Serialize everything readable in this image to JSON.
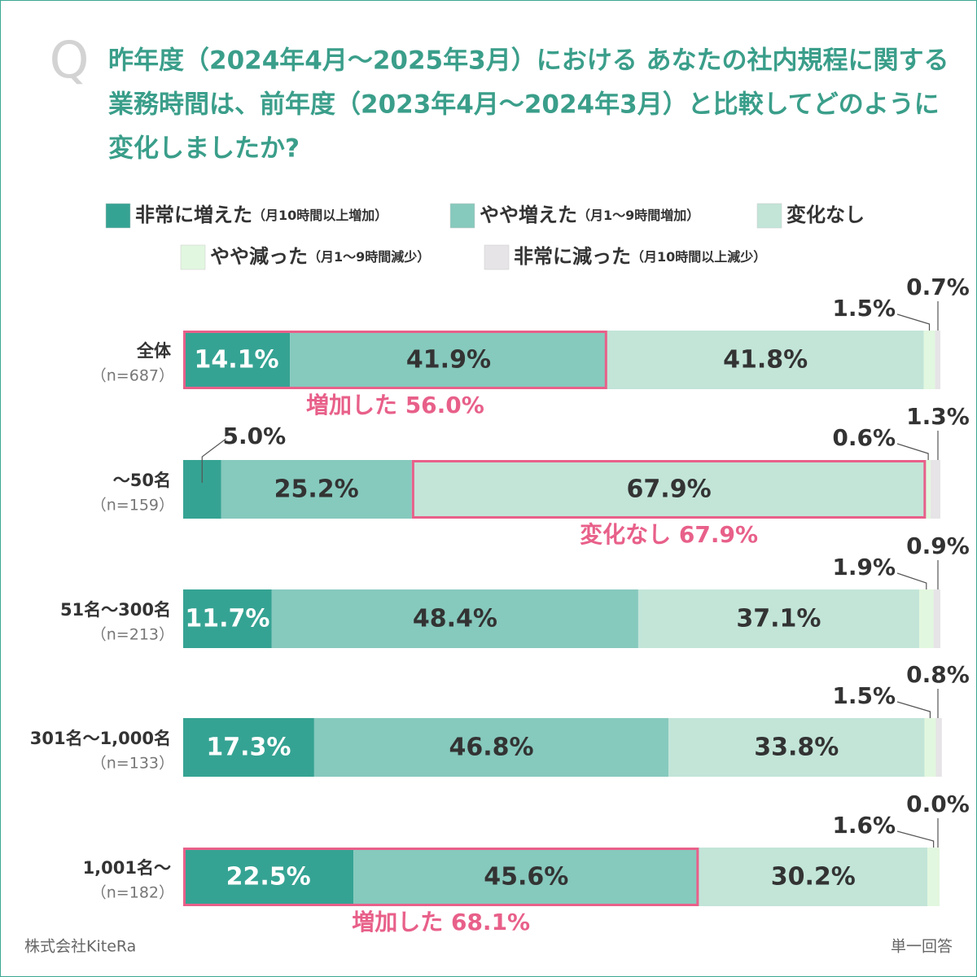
{
  "chart_data": {
    "type": "stacked-bar-horizontal",
    "q_mark": "Q",
    "title_lines": [
      "昨年度（2024年4月～2025年3月）における あなたの社内規程に関する",
      "業務時間は、前年度（2023年4月～2024年3月）と比較してどのように",
      "変化しましたか?"
    ],
    "categories": [
      "全体",
      "～50名",
      "51名～300名",
      "301名～1,000名",
      "1,001名～"
    ],
    "category_notes": [
      "（n=687）",
      "（n=159）",
      "（n=213）",
      "（n=133）",
      "（n=182）"
    ],
    "xlim": [
      0,
      100
    ],
    "series": [
      {
        "name": "非常に増えた",
        "detail": "（月10時間以上増加）",
        "color": "#35a393",
        "values": [
          14.1,
          5.0,
          11.7,
          17.3,
          22.5
        ],
        "value_labels": [
          "14.1%",
          "5.0%",
          "11.7%",
          "17.3%",
          "22.5%"
        ]
      },
      {
        "name": "やや増えた",
        "detail": "（月1～9時間増加）",
        "color": "#86c9bd",
        "values": [
          41.9,
          25.2,
          48.4,
          46.8,
          45.6
        ],
        "value_labels": [
          "41.9%",
          "25.2%",
          "48.4%",
          "46.8%",
          "45.6%"
        ]
      },
      {
        "name": "変化なし",
        "color": "#c2e5d8",
        "values": [
          41.8,
          67.9,
          37.1,
          33.8,
          30.2
        ],
        "value_labels": [
          "41.8%",
          "67.9%",
          "37.1%",
          "33.8%",
          "30.2%"
        ]
      },
      {
        "name": "やや減った",
        "detail": "（月1～9時間減少）",
        "color": "#e2f7df",
        "values": [
          1.5,
          0.6,
          1.9,
          1.5,
          1.6
        ],
        "value_labels": [
          "1.5%",
          "0.6%",
          "1.9%",
          "1.5%",
          "1.6%"
        ]
      },
      {
        "name": "非常に減った",
        "detail": "（月10時間以上減少）",
        "color": "#e6e4e6",
        "values": [
          0.7,
          1.3,
          0.9,
          0.8,
          0.0
        ],
        "value_labels": [
          "0.7%",
          "1.3%",
          "0.9%",
          "0.8%",
          "0.0%"
        ]
      }
    ],
    "annotations": [
      {
        "text": "増加した 56.0%",
        "value": 56.0
      },
      {
        "text": "変化なし 67.9%",
        "value": 67.9
      },
      {
        "text": "増加した 68.1%",
        "value": 68.1
      }
    ],
    "source": "株式会社KiteRa",
    "note": "単一回答"
  }
}
